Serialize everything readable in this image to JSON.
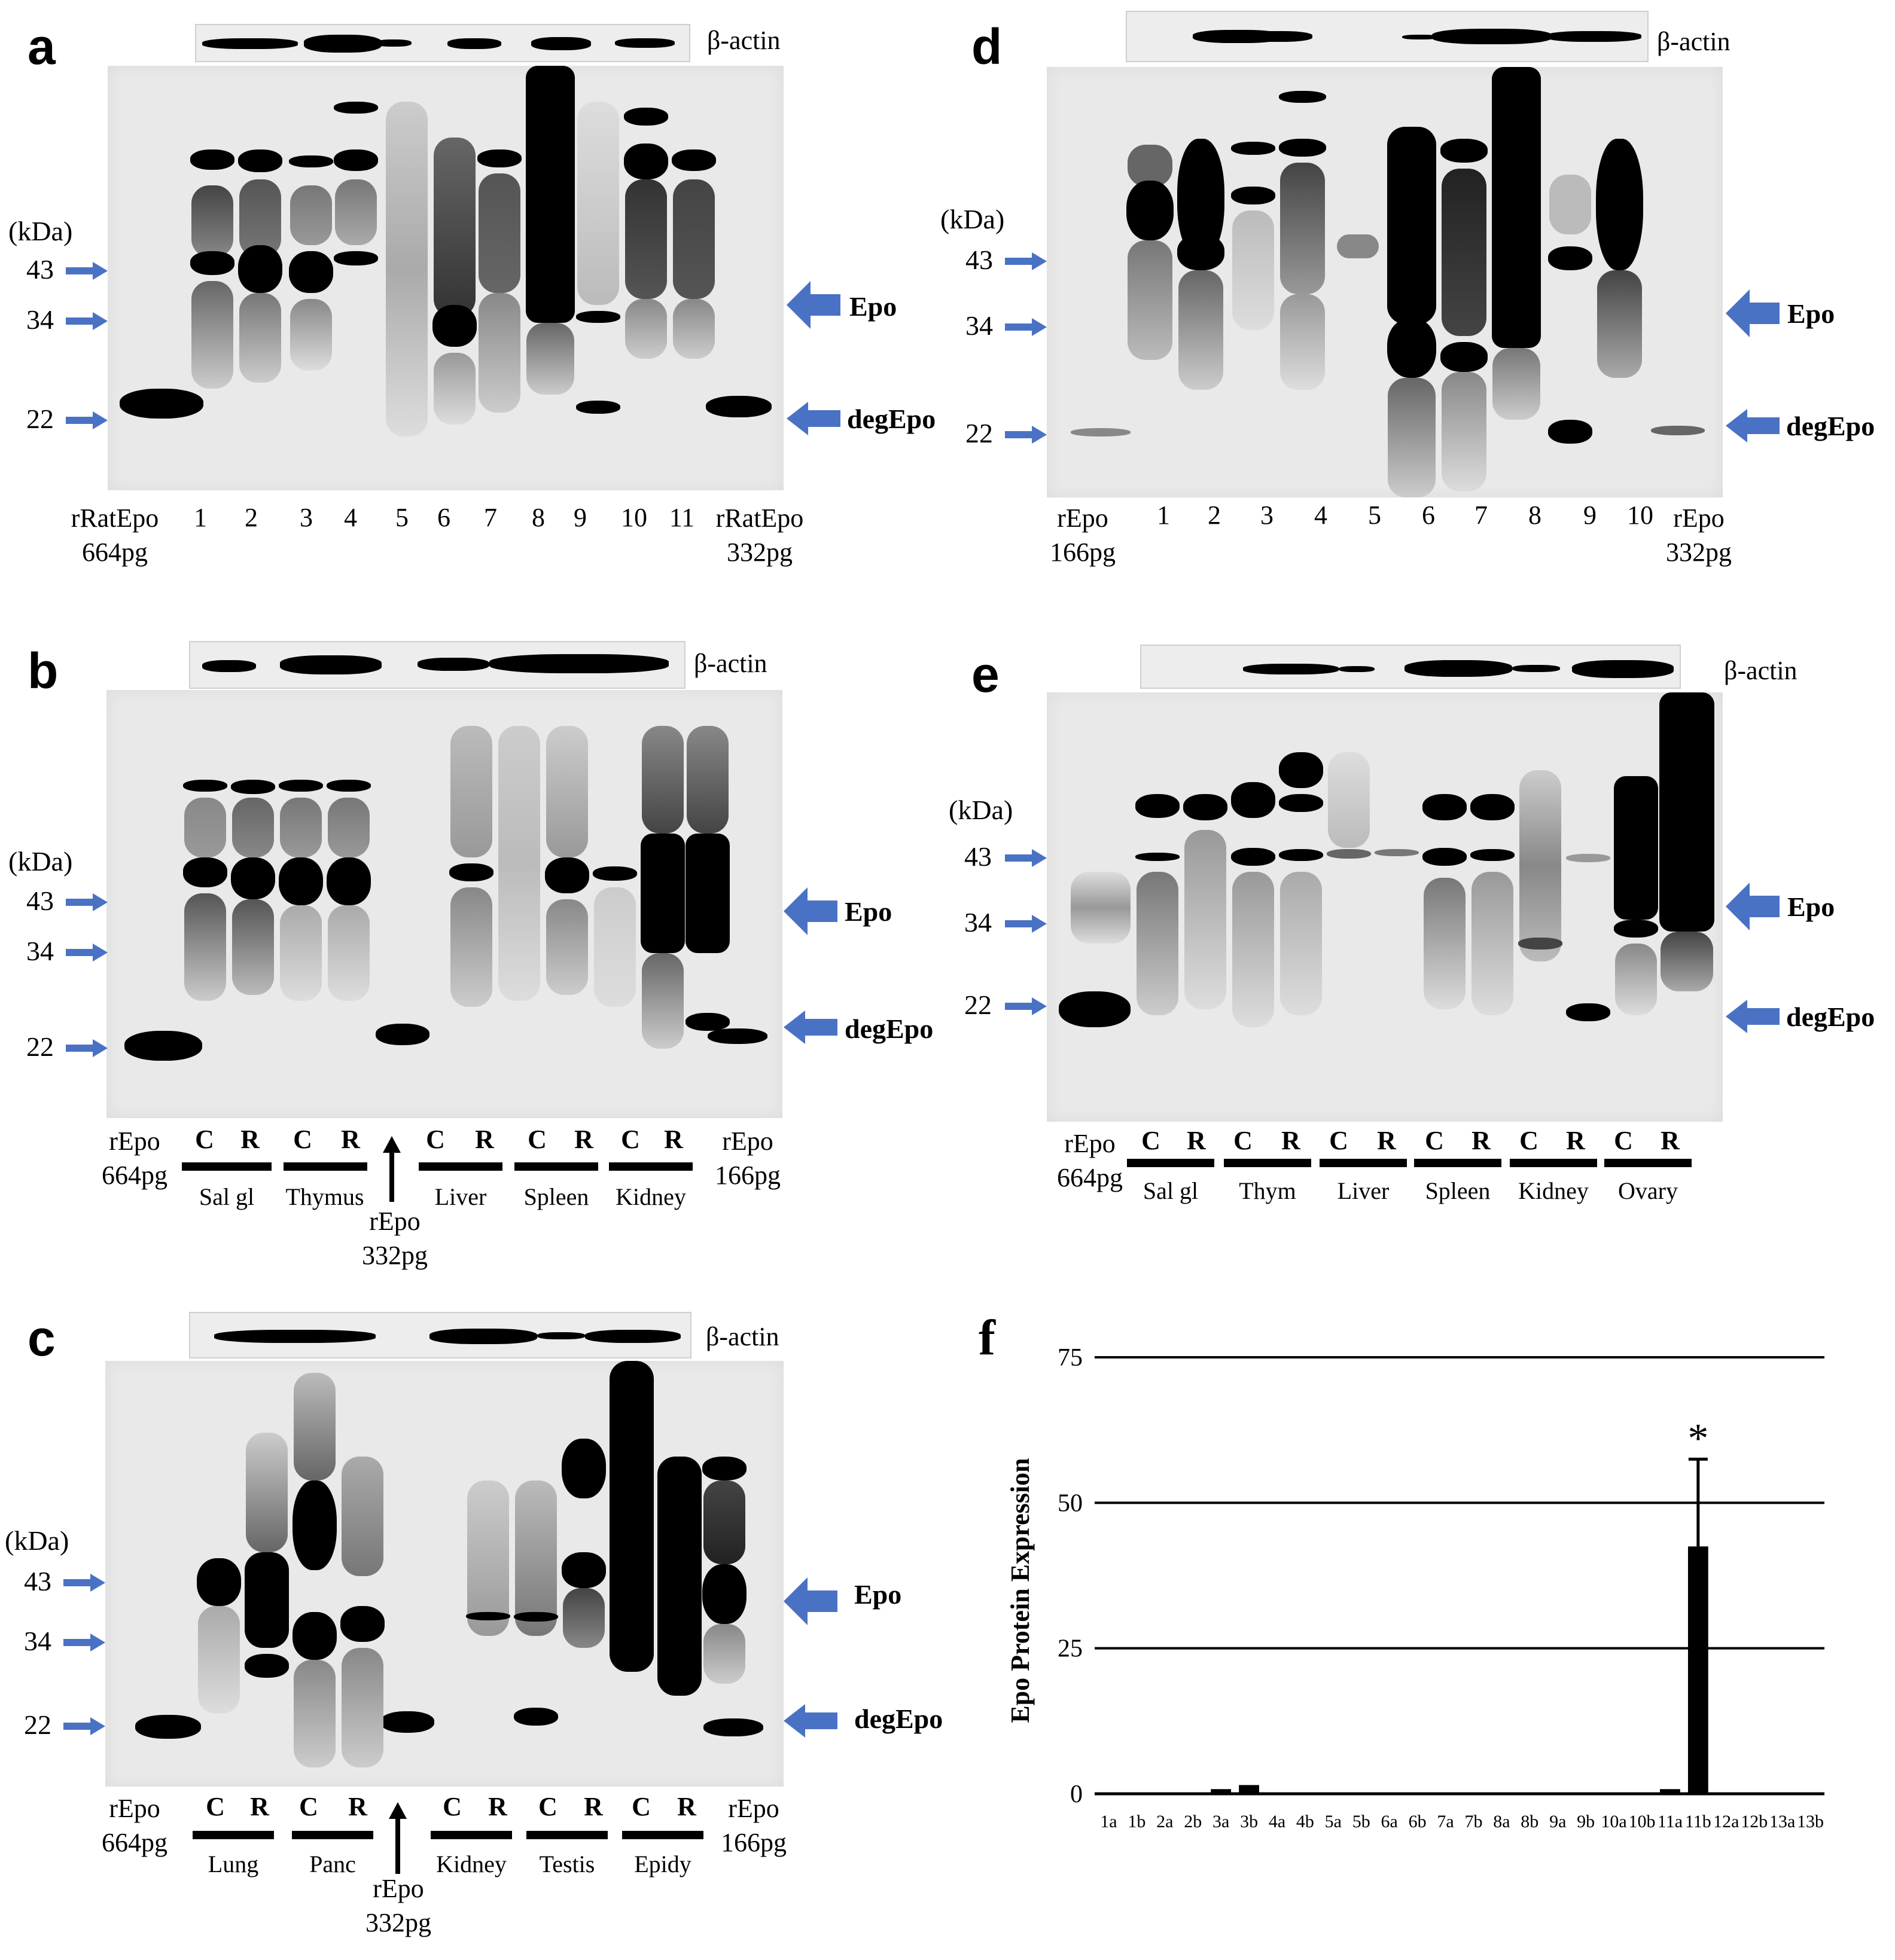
{
  "panels": {
    "a": {
      "label": "a",
      "actin": "β-actin",
      "kda_unit": "(kDa)",
      "markers": [
        "43",
        "34",
        "22"
      ],
      "epo": "Epo",
      "degepo": "degEpo",
      "left_std": [
        "rRatEpo",
        "664pg"
      ],
      "right_std": [
        "rRatEpo",
        "332pg"
      ],
      "lanes": [
        "1",
        "2",
        "3",
        "4",
        "5",
        "6",
        "7",
        "8",
        "9",
        "10",
        "11"
      ]
    },
    "b": {
      "label": "b",
      "actin": "β-actin",
      "kda_unit": "(kDa)",
      "markers": [
        "43",
        "34",
        "22"
      ],
      "epo": "Epo",
      "degepo": "degEpo",
      "left_std": [
        "rEpo",
        "664pg"
      ],
      "right_std": [
        "rEpo",
        "166pg"
      ],
      "mid_std": [
        "rEpo",
        "332pg"
      ],
      "cr": [
        "C",
        "R",
        "C",
        "R",
        "C",
        "R",
        "C",
        "R",
        "C",
        "R"
      ],
      "groups": [
        "Sal gl",
        "Thymus",
        "Liver",
        "Spleen",
        "Kidney"
      ]
    },
    "c": {
      "label": "c",
      "actin": "β-actin",
      "kda_unit": "(kDa)",
      "markers": [
        "43",
        "34",
        "22"
      ],
      "epo": "Epo",
      "degepo": "degEpo",
      "left_std": [
        "rEpo",
        "664pg"
      ],
      "right_std": [
        "rEpo",
        "166pg"
      ],
      "mid_std": [
        "rEpo",
        "332pg"
      ],
      "cr": [
        "C",
        "R",
        "C",
        "R",
        "C",
        "R",
        "C",
        "R",
        "C",
        "R"
      ],
      "groups": [
        "Lung",
        "Panc",
        "Kidney",
        "Testis",
        "Epidy"
      ]
    },
    "d": {
      "label": "d",
      "actin": "β-actin",
      "kda_unit": "(kDa)",
      "markers": [
        "43",
        "34",
        "22"
      ],
      "epo": "Epo",
      "degepo": "degEpo",
      "left_std": [
        "rEpo",
        "166pg"
      ],
      "right_std": [
        "rEpo",
        "332pg"
      ],
      "lanes": [
        "1",
        "2",
        "3",
        "4",
        "5",
        "6",
        "7",
        "8",
        "9",
        "10"
      ]
    },
    "e": {
      "label": "e",
      "actin": "β-actin",
      "kda_unit": "(kDa)",
      "markers": [
        "43",
        "34",
        "22"
      ],
      "epo": "Epo",
      "degepo": "degEpo",
      "left_std": [
        "rEpo",
        "664pg"
      ],
      "cr": [
        "C",
        "R",
        "C",
        "R",
        "C",
        "R",
        "C",
        "R",
        "C",
        "R",
        "C",
        "R"
      ],
      "groups": [
        "Sal gl",
        "Thym",
        "Liver",
        "Spleen",
        "Kidney",
        "Ovary"
      ]
    },
    "f": {
      "label": "f"
    }
  },
  "chart_data": {
    "type": "bar",
    "title": "",
    "xlabel": "",
    "ylabel": "Epo Protein Expression",
    "ylim": [
      0,
      75
    ],
    "yticks": [
      "0",
      "25",
      "50",
      "75"
    ],
    "grid": true,
    "categories": [
      "1a",
      "1b",
      "2a",
      "2b",
      "3a",
      "3b",
      "4a",
      "4b",
      "5a",
      "5b",
      "6a",
      "6b",
      "7a",
      "7b",
      "8a",
      "8b",
      "9a",
      "9b",
      "10a",
      "10b",
      "11a",
      "11b",
      "12a",
      "12b",
      "13a",
      "13b"
    ],
    "values": [
      0,
      0,
      0,
      0,
      0.8,
      1.5,
      0,
      0,
      0,
      0,
      0,
      0,
      0,
      0,
      0,
      0,
      0,
      0,
      0,
      0,
      0.8,
      42.5,
      0,
      0,
      0,
      0
    ],
    "errors": [
      0,
      0,
      0,
      0,
      0,
      0,
      0,
      0,
      0,
      0,
      0,
      0,
      0,
      0,
      0,
      0,
      0,
      0,
      0,
      0,
      0,
      15,
      0,
      0,
      0,
      0
    ],
    "annotation": "*",
    "annotation_category": "11b",
    "bar_color": "#000000"
  },
  "colors": {
    "arrow": "#4a72c4",
    "band": "#000000",
    "blot_bg": "#e9e9e9"
  }
}
